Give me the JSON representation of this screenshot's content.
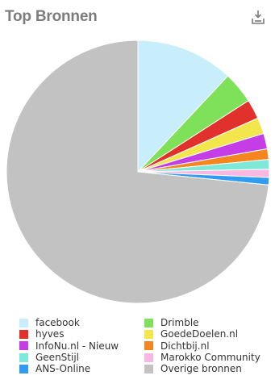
{
  "title": "Top Bronnen",
  "export_icon": "download-icon",
  "chart_data": {
    "type": "pie",
    "title": "Top Bronnen",
    "legend_position": "bottom",
    "slices": [
      {
        "label": "facebook",
        "value": 12.0,
        "color": "#c8eefc"
      },
      {
        "label": "Drimble",
        "value": 3.9,
        "color": "#7fe05a"
      },
      {
        "label": "hyves",
        "value": 2.4,
        "color": "#e0312c"
      },
      {
        "label": "GoedeDoelen.nl",
        "value": 2.0,
        "color": "#f2e64c"
      },
      {
        "label": "InfoNu.nl - Nieuw",
        "value": 1.9,
        "color": "#c43de6"
      },
      {
        "label": "Dichtbij.nl",
        "value": 1.3,
        "color": "#f5861f"
      },
      {
        "label": "GeenStijl",
        "value": 1.2,
        "color": "#7fe9d9"
      },
      {
        "label": "Marokko Community",
        "value": 1.0,
        "color": "#f9b8e2"
      },
      {
        "label": "ANS-Online",
        "value": 0.9,
        "color": "#2f9cf0"
      },
      {
        "label": "Overige bronnen",
        "value": 73.4,
        "color": "#c2c2c2"
      }
    ]
  }
}
